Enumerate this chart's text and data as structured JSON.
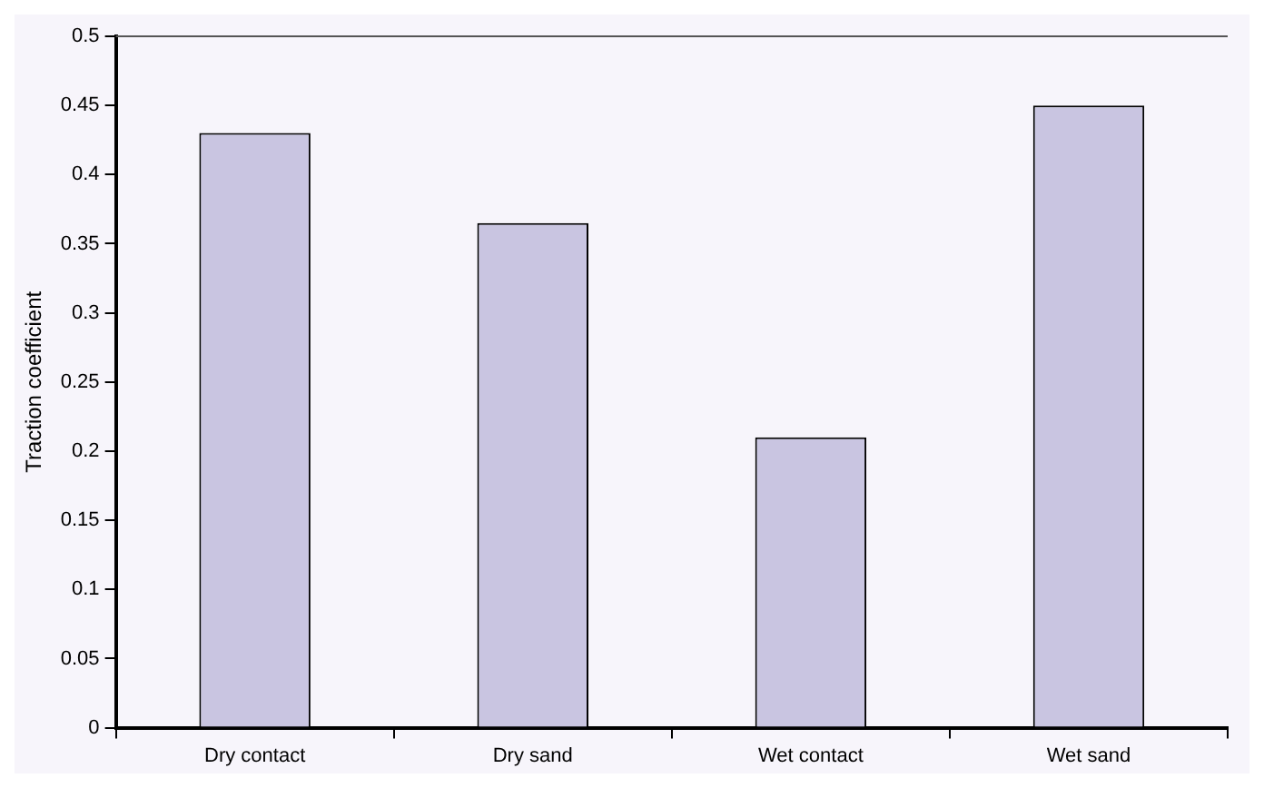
{
  "chart_data": {
    "type": "bar",
    "ylabel": "Traction coefficient",
    "categories": [
      "Dry contact",
      "Dry sand",
      "Wet contact",
      "Wet sand"
    ],
    "values": [
      0.43,
      0.365,
      0.21,
      0.45
    ],
    "color": "#c9c5e1",
    "ylim": [
      0,
      0.5
    ],
    "yticks": [
      0,
      0.05,
      0.1,
      0.15,
      0.2,
      0.25,
      0.3,
      0.35,
      0.4,
      0.45,
      0.5
    ],
    "grid": false,
    "legend": false
  }
}
